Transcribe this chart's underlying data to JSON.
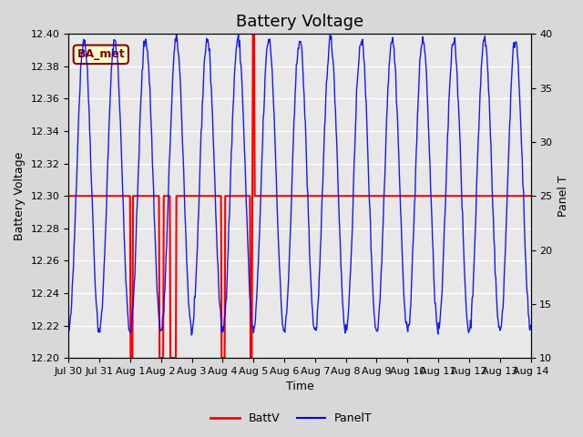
{
  "title": "Battery Voltage",
  "xlabel": "Time",
  "ylabel_left": "Battery Voltage",
  "ylabel_right": "Panel T",
  "ylim_left": [
    12.2,
    12.4
  ],
  "ylim_right": [
    10,
    40
  ],
  "x_tick_labels": [
    "Jul 30",
    "Jul 31",
    "Aug 1",
    "Aug 2",
    "Aug 3",
    "Aug 4",
    "Aug 5",
    "Aug 6",
    "Aug 7",
    "Aug 8",
    "Aug 9",
    "Aug 10",
    "Aug 11",
    "Aug 12",
    "Aug 13",
    "Aug 14"
  ],
  "background_color": "#d8d8d8",
  "plot_bg_color": "#e8e8e8",
  "annotation_text": "BA_met",
  "annotation_color": "#8b0000",
  "annotation_bg": "#ffffcc",
  "legend_entries": [
    "BattV",
    "PanelT"
  ],
  "batt_color": "red",
  "panel_color": "blue",
  "title_fontsize": 13,
  "axis_fontsize": 9,
  "tick_fontsize": 8
}
